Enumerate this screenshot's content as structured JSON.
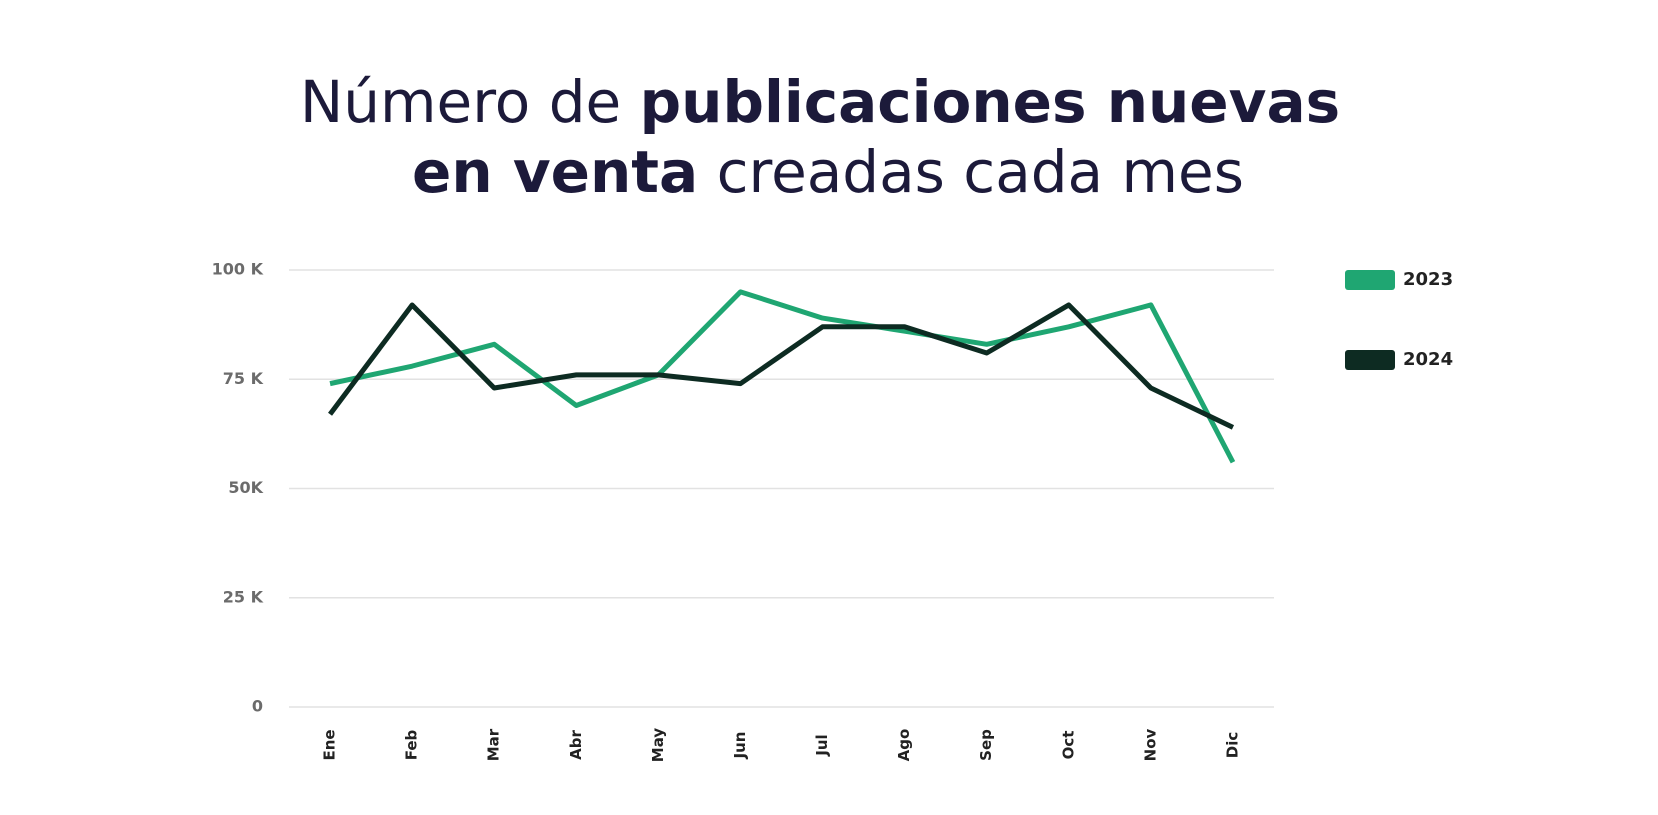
{
  "chart_data": {
    "type": "line",
    "title": [
      "Número de ",
      "publicaciones nuevas",
      "en venta",
      " creadas cada mes"
    ],
    "title_bold": [
      false,
      true,
      true,
      false
    ],
    "categories": [
      "Ene",
      "Feb",
      "Mar",
      "Abr",
      "May",
      "Jun",
      "Jul",
      "Ago",
      "Sep",
      "Oct",
      "Nov",
      "Dic"
    ],
    "series": [
      {
        "name": "2023",
        "color": "#1fa672",
        "values": [
          74000,
          78000,
          83000,
          69000,
          76000,
          95000,
          89000,
          86000,
          83000,
          87000,
          92000,
          56000
        ]
      },
      {
        "name": "2024",
        "color": "#0d2b22",
        "values": [
          67000,
          92000,
          73000,
          76000,
          76000,
          74000,
          87000,
          87000,
          81000,
          92000,
          73000,
          64000
        ]
      }
    ],
    "ylim": [
      0,
      100000
    ],
    "yticks": [
      0,
      {
        "value": 25000,
        "label": "25 K"
      },
      {
        "value": 50000,
        "label": "50K"
      },
      {
        "value": 75000,
        "label": "75 K"
      },
      {
        "value": 100000,
        "label": "100 K"
      }
    ],
    "grid": true,
    "legend": "right"
  }
}
